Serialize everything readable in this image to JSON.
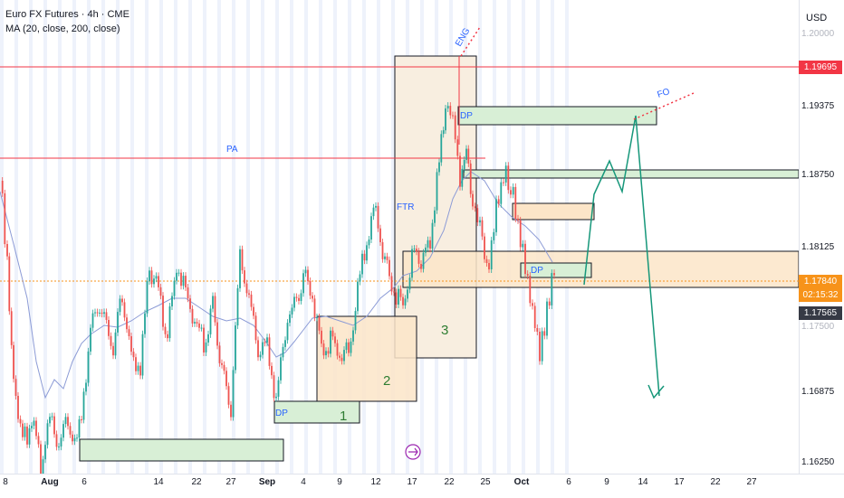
{
  "header": {
    "symbol_line": "Euro FX Futures · 4h · CME",
    "indicator_line": "MA (20, close, 200, close)"
  },
  "price_axis": {
    "currency": "USD",
    "labels": [
      "1.19375",
      "1.18750",
      "1.18125",
      "1.16875",
      "1.16250"
    ],
    "tags": {
      "resistance": "1.19695",
      "current_price": "1.17840",
      "countdown": "02:15:32",
      "crosshair": "1.17565"
    },
    "partial_top": "1.20000",
    "partial_mid": "1.17500"
  },
  "time_axis": {
    "labels": [
      "8",
      "Aug",
      "6",
      "14",
      "22",
      "27",
      "Sep",
      "4",
      "9",
      "12",
      "17",
      "22",
      "25",
      "Oct",
      "6",
      "9",
      "14",
      "17",
      "22",
      "27"
    ]
  },
  "annotations": {
    "pa": "PA",
    "ftr": "FTR",
    "eng": "ENG",
    "fo": "FO",
    "dp_top": "DP",
    "dp_left": "DP",
    "dp_right": "DP",
    "box1": "1",
    "box2": "2",
    "box3": "3"
  },
  "colors": {
    "bull": "#26a69a",
    "bear": "#ef5350",
    "resistance_line": "#f23645",
    "zone_fill": "#fce5c8",
    "demand_fill": "#d8efd6",
    "projection": "#16977a",
    "ma_line": "#8c9bd6",
    "current_tag": "#f7931a",
    "crosshair_tag": "#363a45"
  }
}
